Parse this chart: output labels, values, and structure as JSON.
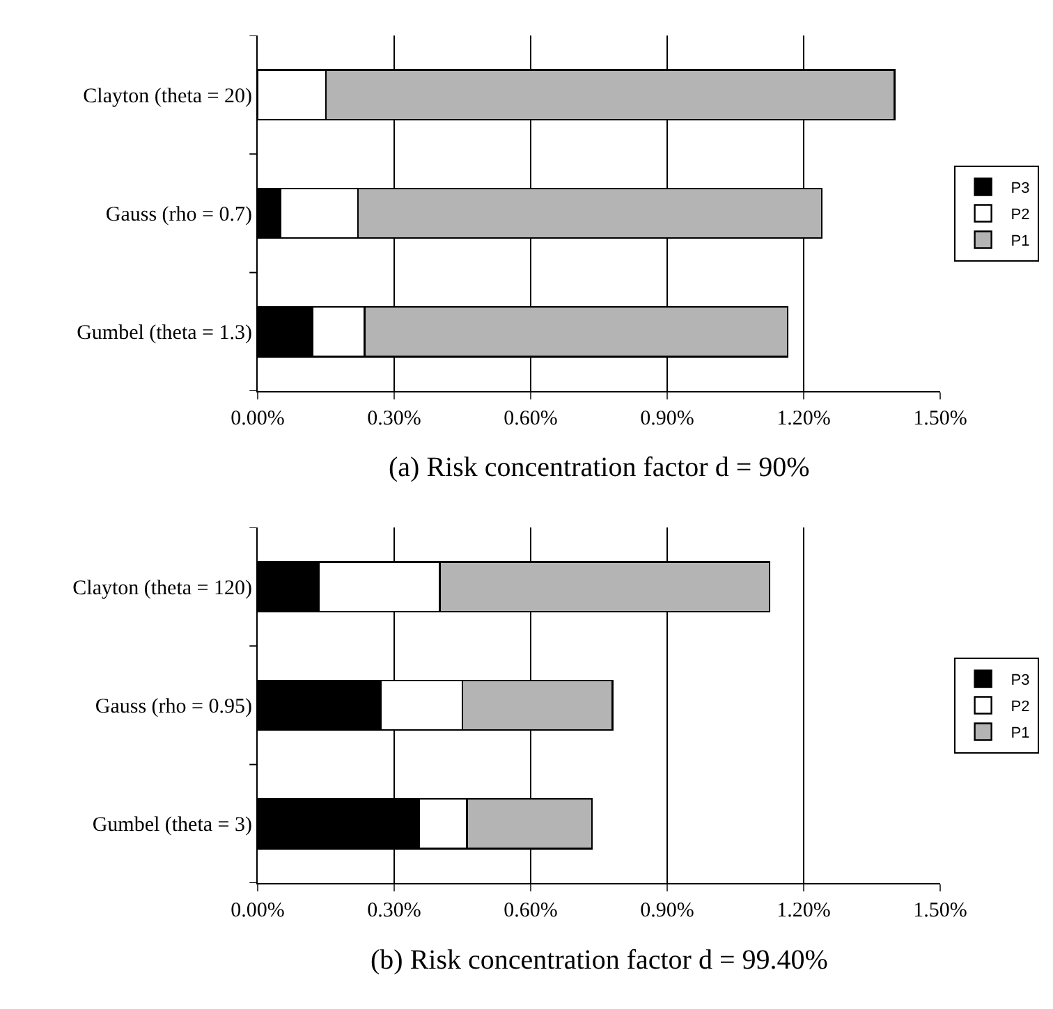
{
  "chart_data": [
    {
      "type": "bar",
      "orientation": "horizontal",
      "stacked": true,
      "title": "(a) Risk concentration factor d = 90%",
      "categories": [
        "Clayton (theta = 20)",
        "Gauss (rho = 0.7)",
        "Gumbel (theta = 1.3)"
      ],
      "series": [
        {
          "name": "P3",
          "color": "#000000",
          "values": [
            0,
            0.05,
            0.12
          ]
        },
        {
          "name": "P2",
          "color": "#ffffff",
          "values": [
            0.15,
            0.17,
            0.115
          ]
        },
        {
          "name": "P1",
          "color": "#b4b4b4",
          "values": [
            1.25,
            1.02,
            0.93
          ]
        }
      ],
      "xlim": [
        0,
        1.5
      ],
      "xticks": [
        {
          "value": 0,
          "label": "0.00%"
        },
        {
          "value": 0.3,
          "label": "0.30%"
        },
        {
          "value": 0.6,
          "label": "0.60%"
        },
        {
          "value": 0.9,
          "label": "0.90%"
        },
        {
          "value": 1.2,
          "label": "1.20%"
        },
        {
          "value": 1.5,
          "label": "1.50%"
        }
      ],
      "grid": "x",
      "legend": "right"
    },
    {
      "type": "bar",
      "orientation": "horizontal",
      "stacked": true,
      "title": "(b) Risk concentration factor d = 99.40%",
      "categories": [
        "Clayton (theta = 120)",
        "Gauss (rho = 0.95)",
        "Gumbel (theta = 3)"
      ],
      "series": [
        {
          "name": "P3",
          "color": "#000000",
          "values": [
            0.135,
            0.27,
            0.355
          ]
        },
        {
          "name": "P2",
          "color": "#ffffff",
          "values": [
            0.265,
            0.18,
            0.105
          ]
        },
        {
          "name": "P1",
          "color": "#b4b4b4",
          "values": [
            0.725,
            0.33,
            0.275
          ]
        }
      ],
      "xlim": [
        0,
        1.5
      ],
      "xticks": [
        {
          "value": 0,
          "label": "0.00%"
        },
        {
          "value": 0.3,
          "label": "0.30%"
        },
        {
          "value": 0.6,
          "label": "0.60%"
        },
        {
          "value": 0.9,
          "label": "0.90%"
        },
        {
          "value": 1.2,
          "label": "1.20%"
        },
        {
          "value": 1.5,
          "label": "1.50%"
        }
      ],
      "grid": "x",
      "legend": "right"
    }
  ]
}
